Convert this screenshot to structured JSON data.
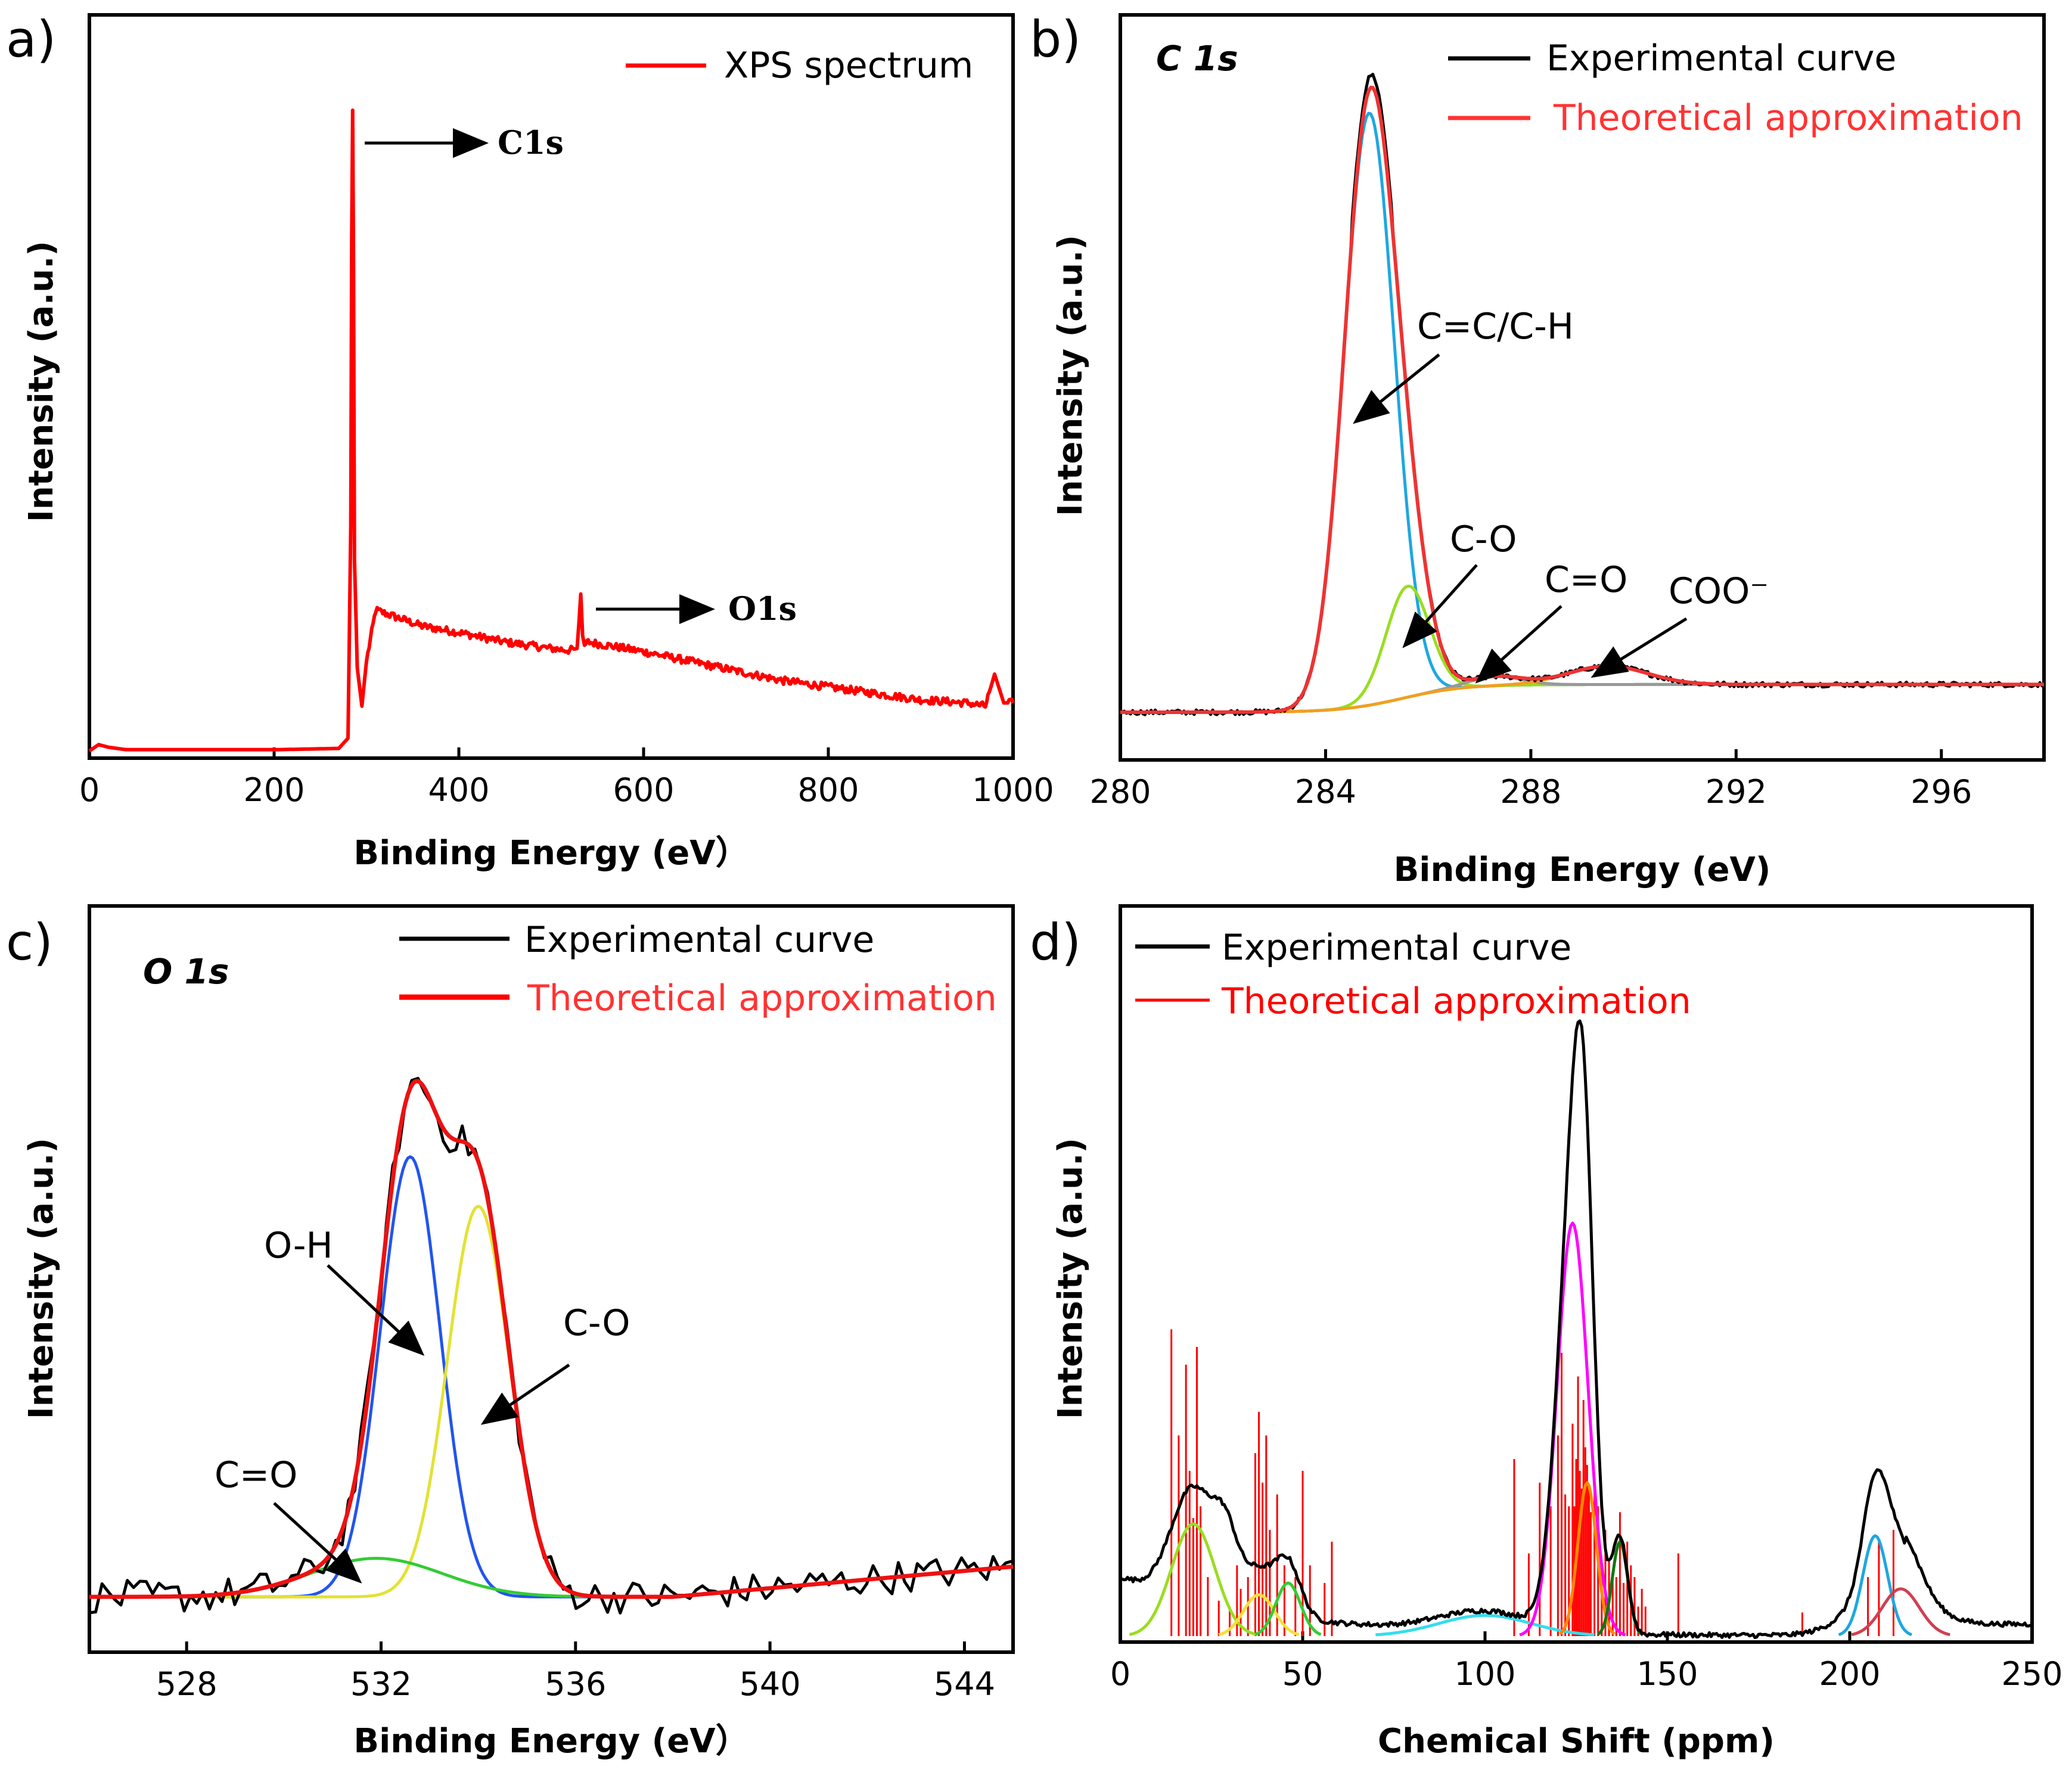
{
  "colors": {
    "experimental": "#000000",
    "theoretical": "#ff0000",
    "theoretical_text": "#ff3333"
  },
  "chart_data": [
    {
      "panel": "a)",
      "type": "line",
      "xlabel": "Binding Energy (eV）",
      "ylabel": "Intensity (a.u.)",
      "xlim": [
        0,
        1000
      ],
      "ylim": [
        0,
        1
      ],
      "xticks": [
        "0",
        "200",
        "400",
        "600",
        "800",
        "1000"
      ],
      "legend": [
        "XPS spectrum"
      ],
      "annotations": [
        {
          "text": "C1s",
          "x": 285
        },
        {
          "text": "O1s",
          "x": 532
        }
      ],
      "series": [
        {
          "name": "XPS spectrum",
          "color": "#ff0000",
          "x": [
            0,
            10,
            20,
            40,
            100,
            200,
            270,
            280,
            283,
            284,
            285,
            286,
            287,
            290,
            295,
            300,
            310,
            330,
            360,
            400,
            450,
            500,
            520,
            528,
            530,
            532,
            534,
            536,
            540,
            560,
            600,
            650,
            700,
            750,
            800,
            850,
            900,
            950,
            970,
            980,
            990,
            1000
          ],
          "y": [
            0.0,
            0.01,
            0.006,
            0.002,
            0.002,
            0.002,
            0.004,
            0.02,
            0.35,
            0.8,
            1.0,
            0.75,
            0.3,
            0.13,
            0.07,
            0.14,
            0.22,
            0.21,
            0.195,
            0.185,
            0.17,
            0.16,
            0.157,
            0.16,
            0.2,
            0.245,
            0.18,
            0.165,
            0.17,
            0.165,
            0.155,
            0.14,
            0.125,
            0.11,
            0.1,
            0.09,
            0.08,
            0.075,
            0.07,
            0.12,
            0.075,
            0.075
          ]
        }
      ]
    },
    {
      "panel": "b)",
      "title": "C 1s",
      "type": "line",
      "xlabel": "Binding Energy (eV)",
      "ylabel": "Intensity (a.u.)",
      "xlim": [
        280,
        298
      ],
      "ylim": [
        0,
        1
      ],
      "xticks": [
        "280",
        "284",
        "288",
        "292",
        "296"
      ],
      "legend": [
        "Experimental curve",
        "Theoretical approximation"
      ],
      "annotations": [
        {
          "text": "C=C/C-H",
          "x": 284.85
        },
        {
          "text": "C-O",
          "x": 285.6
        },
        {
          "text": "C=O",
          "x": 287.2
        },
        {
          "text": "COO⁻",
          "x": 289.5
        }
      ],
      "peaks": [
        {
          "label": "C=C/C-H",
          "center": 284.85,
          "height": 0.96,
          "fwhm": 1.15,
          "color": "#1ea7e0"
        },
        {
          "label": "C-O",
          "center": 285.6,
          "height": 0.18,
          "fwhm": 1.0,
          "color": "#99dd22"
        },
        {
          "label": "C=O",
          "center": 287.3,
          "height": 0.015,
          "fwhm": 1.2,
          "color": "#999999"
        },
        {
          "label": "COO⁻",
          "center": 289.5,
          "height": 0.03,
          "fwhm": 1.8,
          "color": "#f0a020"
        }
      ],
      "background": {
        "low": 0.0,
        "high": 0.045,
        "center": 285.5,
        "width": 0.6,
        "color": "#7a2ad6"
      }
    },
    {
      "panel": "c)",
      "title": "O 1s",
      "type": "line",
      "xlabel": "Binding Energy (eV）",
      "ylabel": "Intensity (a.u.)",
      "xlim": [
        526,
        545
      ],
      "ylim": [
        0,
        1
      ],
      "xticks": [
        "528",
        "532",
        "536",
        "540",
        "544"
      ],
      "legend": [
        "Experimental curve",
        "Theoretical approximation"
      ],
      "annotations": [
        {
          "text": "O-H",
          "x": 532.6
        },
        {
          "text": "C-O",
          "x": 534.0
        },
        {
          "text": "C=O",
          "x": 531.9
        }
      ],
      "peaks": [
        {
          "label": "O-H",
          "center": 532.6,
          "height": 0.8,
          "fwhm": 1.45,
          "color": "#2255ee"
        },
        {
          "label": "C-O",
          "center": 534.0,
          "height": 0.71,
          "fwhm": 1.5,
          "color": "#e2e233"
        },
        {
          "label": "C=O",
          "center": 531.9,
          "height": 0.07,
          "fwhm": 3.2,
          "color": "#33cc33"
        }
      ],
      "background": {
        "y_at_min": 0.015,
        "y_at_max": 0.07
      }
    },
    {
      "panel": "d)",
      "type": "line",
      "xlabel": "Chemical Shift (ppm)",
      "ylabel": "Intensity (a.u.)",
      "xlim": [
        0,
        250
      ],
      "ylim": [
        0,
        1
      ],
      "xticks": [
        "0",
        "50",
        "100",
        "150",
        "200",
        "250"
      ],
      "legend": [
        "Experimental curve",
        "Theoretical approximation"
      ],
      "peaks": [
        {
          "center": 20,
          "height": 0.19,
          "fwhm": 14,
          "color": "#99dd22"
        },
        {
          "center": 38,
          "height": 0.07,
          "fwhm": 10,
          "color": "#f2e03a"
        },
        {
          "center": 46,
          "height": 0.09,
          "fwhm": 8,
          "color": "#33cc33"
        },
        {
          "center": 100,
          "height": 0.035,
          "fwhm": 30,
          "color": "#33ddee"
        },
        {
          "center": 124,
          "height": 0.7,
          "fwhm": 10,
          "color": "#ff00ff"
        },
        {
          "center": 128,
          "height": 0.26,
          "fwhm": 6,
          "color": "#ff8800"
        },
        {
          "center": 137,
          "height": 0.16,
          "fwhm": 5,
          "color": "#117711"
        },
        {
          "center": 207,
          "height": 0.17,
          "fwhm": 8,
          "color": "#1ea7e0"
        },
        {
          "center": 214,
          "height": 0.08,
          "fwhm": 12,
          "color": "#d04050"
        }
      ],
      "experimental_extra": [
        {
          "center": 29,
          "height": 0.1,
          "fwhm": 8
        },
        {
          "center": 126,
          "height": 0.22,
          "fwhm": 6
        },
        {
          "center": 210,
          "height": 0.08,
          "fwhm": 22
        }
      ],
      "sticks": {
        "x": [
          14,
          16,
          18,
          19,
          20,
          21,
          22,
          24,
          27,
          30,
          32,
          33,
          35,
          37,
          38,
          39,
          40,
          41,
          43,
          45,
          48,
          50,
          52,
          56,
          58,
          108,
          112,
          115,
          118,
          120,
          121,
          122,
          123,
          124,
          124.5,
          125,
          125.5,
          126,
          126.5,
          127,
          127.5,
          128,
          128.5,
          129,
          130,
          131,
          132,
          133,
          134,
          135,
          136,
          137,
          138,
          139,
          140,
          141,
          142,
          143,
          144,
          153,
          187,
          205,
          208,
          212
        ],
        "y": [
          0.52,
          0.34,
          0.46,
          0.28,
          0.2,
          0.49,
          0.22,
          0.1,
          0.06,
          0.05,
          0.12,
          0.08,
          0.1,
          0.31,
          0.38,
          0.26,
          0.34,
          0.18,
          0.24,
          0.12,
          0.1,
          0.28,
          0.12,
          0.09,
          0.16,
          0.3,
          0.14,
          0.26,
          0.22,
          0.34,
          0.48,
          0.24,
          0.22,
          0.36,
          0.22,
          0.3,
          0.44,
          0.28,
          0.25,
          0.4,
          0.32,
          0.29,
          0.25,
          0.21,
          0.26,
          0.22,
          0.12,
          0.18,
          0.13,
          0.1,
          0.1,
          0.21,
          0.09,
          0.16,
          0.12,
          0.1,
          0.05,
          0.08,
          0.05,
          0.14,
          0.04,
          0.1,
          0.16,
          0.18
        ]
      }
    }
  ]
}
